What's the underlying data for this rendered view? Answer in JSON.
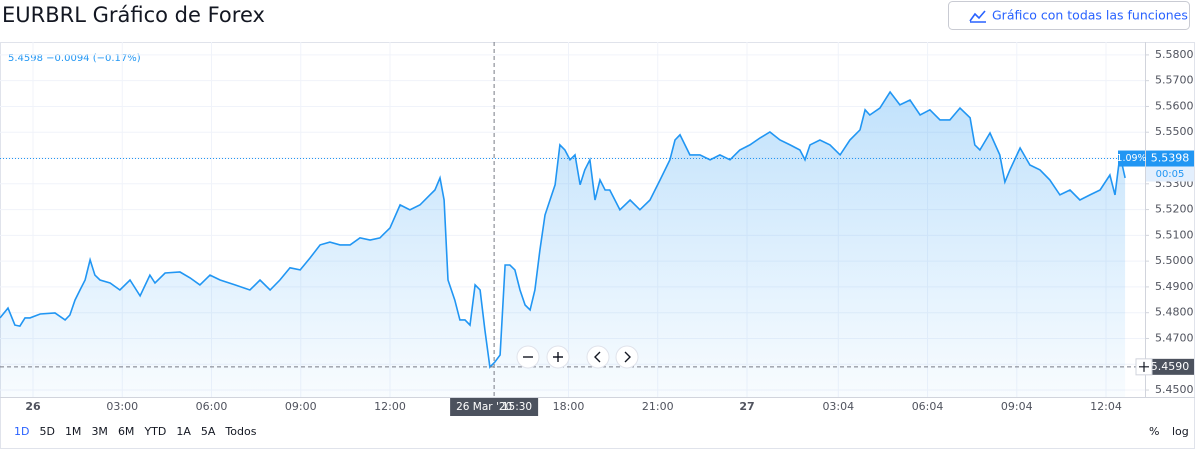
{
  "header": {
    "title": "EURBRL Gráfico de Forex",
    "button": "Gráfico con todas las funciones"
  },
  "legend_text": "5.4598 −0.0094 (−0.17%)",
  "ranges": [
    "1D",
    "5D",
    "1M",
    "3M",
    "6M",
    "YTD",
    "1A",
    "5A",
    "Todos"
  ],
  "selected_range": "1D",
  "scale_options": [
    "%",
    "log"
  ],
  "chart_data": {
    "type": "line",
    "color": "#2196f3",
    "grid": true,
    "x": [
      -1.11,
      -0.84,
      -0.61,
      -0.44,
      -0.27,
      -0.1,
      0.24,
      0.74,
      1.08,
      1.24,
      1.41,
      1.58,
      1.75,
      1.92,
      2.08,
      2.25,
      2.59,
      2.92,
      3.26,
      3.6,
      3.93,
      4.1,
      4.44,
      4.94,
      5.28,
      5.61,
      5.95,
      6.29,
      6.79,
      7.29,
      7.63,
      7.97,
      8.3,
      8.64,
      8.98,
      9.31,
      9.65,
      9.98,
      10.32,
      10.66,
      10.99,
      11.33,
      11.66,
      12.0,
      12.34,
      12.67,
      13.01,
      13.34,
      13.51,
      13.68,
      13.82,
      13.95,
      14.18,
      14.35,
      14.52,
      14.69,
      14.86,
      15.03,
      15.19,
      15.36,
      15.53,
      15.7,
      15.87,
      16.03,
      16.2,
      16.37,
      16.54,
      16.71,
      16.87,
      17.04,
      17.21,
      17.38,
      17.55,
      17.71,
      17.88,
      18.05,
      18.22,
      18.39,
      18.55,
      18.72,
      18.89,
      19.06,
      19.23,
      19.39,
      19.73,
      20.07,
      20.4,
      20.74,
      21.08,
      21.41,
      21.58,
      21.75,
      22.08,
      22.42,
      22.76,
      23.09,
      23.43,
      23.76,
      24.1,
      24.44,
      24.77,
      25.11,
      25.45,
      25.78,
      25.95,
      26.12,
      26.45,
      26.79,
      27.13,
      27.46,
      27.8,
      27.97,
      28.13,
      28.47,
      28.81,
      29.14,
      29.48,
      29.82,
      30.15,
      30.49,
      30.82,
      31.16,
      31.5,
      31.66,
      31.83,
      32.17,
      32.5,
      32.67,
      32.84,
      33.18,
      33.51,
      33.85,
      34.18,
      34.52,
      34.86,
      35.19,
      35.53,
      35.87,
      36.2,
      36.37,
      36.54,
      36.71
    ],
    "values": [
      5.478,
      5.4818,
      5.4752,
      5.4748,
      5.478,
      5.478,
      5.4795,
      5.4799,
      5.4772,
      5.4791,
      5.4849,
      5.4888,
      5.4927,
      5.5005,
      5.4946,
      5.4927,
      5.4915,
      5.4888,
      5.4927,
      5.4865,
      5.4946,
      5.4915,
      5.4954,
      5.4958,
      5.4935,
      5.4908,
      5.4946,
      5.4927,
      5.4908,
      5.4888,
      5.4927,
      5.4888,
      5.4927,
      5.4974,
      5.4966,
      5.5012,
      5.5063,
      5.5074,
      5.5063,
      5.5063,
      5.509,
      5.5082,
      5.509,
      5.5129,
      5.5218,
      5.5199,
      5.5218,
      5.5257,
      5.5276,
      5.5323,
      5.5237,
      5.4927,
      5.4849,
      5.4772,
      5.4772,
      5.4752,
      5.4908,
      5.4888,
      5.4733,
      5.4589,
      5.4609,
      5.4636,
      5.4985,
      5.4985,
      5.4966,
      5.4888,
      5.483,
      5.4811,
      5.4888,
      5.5043,
      5.5179,
      5.5237,
      5.5296,
      5.5451,
      5.5431,
      5.5393,
      5.5412,
      5.5296,
      5.5354,
      5.5393,
      5.5237,
      5.5315,
      5.5276,
      5.5276,
      5.5199,
      5.5237,
      5.5199,
      5.5237,
      5.5315,
      5.5393,
      5.547,
      5.549,
      5.5412,
      5.5412,
      5.5393,
      5.5412,
      5.5393,
      5.5431,
      5.5451,
      5.5478,
      5.5501,
      5.547,
      5.5451,
      5.5431,
      5.5393,
      5.5451,
      5.547,
      5.5451,
      5.5412,
      5.547,
      5.5509,
      5.5587,
      5.5567,
      5.5594,
      5.5656,
      5.5606,
      5.5625,
      5.5567,
      5.5587,
      5.5548,
      5.5548,
      5.5594,
      5.5556,
      5.5451,
      5.5431,
      5.5497,
      5.5412,
      5.5307,
      5.5354,
      5.5439,
      5.5373,
      5.5354,
      5.5315,
      5.5257,
      5.5276,
      5.5237,
      5.5257,
      5.5276,
      5.5334,
      5.5257,
      5.5412,
      5.5323
    ],
    "xlim": [
      -1.11,
      37.38
    ],
    "ylim": [
      5.4473,
      5.585
    ],
    "xticks": [
      {
        "value": 0,
        "label": "26"
      },
      {
        "value": 3,
        "label": "03:00"
      },
      {
        "value": 6,
        "label": "06:00"
      },
      {
        "value": 9,
        "label": "09:00"
      },
      {
        "value": 12,
        "label": "12:00"
      },
      {
        "value": 18,
        "label": "18:00"
      },
      {
        "value": 21,
        "label": "21:00"
      },
      {
        "value": 24,
        "label": "27"
      },
      {
        "value": 27.07,
        "label": "03:04"
      },
      {
        "value": 30.07,
        "label": "06:04"
      },
      {
        "value": 33.07,
        "label": "09:04"
      },
      {
        "value": 36.07,
        "label": "12:04"
      }
    ],
    "yticks": [
      {
        "value": 5.45,
        "label": "5.4500"
      },
      {
        "value": 5.46,
        "label": "5.4600"
      },
      {
        "value": 5.47,
        "label": "5.4700"
      },
      {
        "value": 5.48,
        "label": "5.4800"
      },
      {
        "value": 5.49,
        "label": "5.4900"
      },
      {
        "value": 5.5,
        "label": "5.5000"
      },
      {
        "value": 5.51,
        "label": "5.5100"
      },
      {
        "value": 5.52,
        "label": "5.5200"
      },
      {
        "value": 5.53,
        "label": "5.5300"
      },
      {
        "value": 5.54,
        "label": "5.5400"
      },
      {
        "value": 5.55,
        "label": "5.5500"
      },
      {
        "value": 5.56,
        "label": "5.5600"
      },
      {
        "value": 5.57,
        "label": "5.5700"
      },
      {
        "value": 5.58,
        "label": "5.5800"
      }
    ],
    "last_price": {
      "value": 5.5398,
      "label": "5.5398",
      "change": "1.09%",
      "countdown": "00:05"
    },
    "crosshair": {
      "x": 15.5,
      "date_label": "26 Mar '20",
      "time_label": "15:30",
      "price": 5.459,
      "price_label": "5.4590"
    }
  }
}
